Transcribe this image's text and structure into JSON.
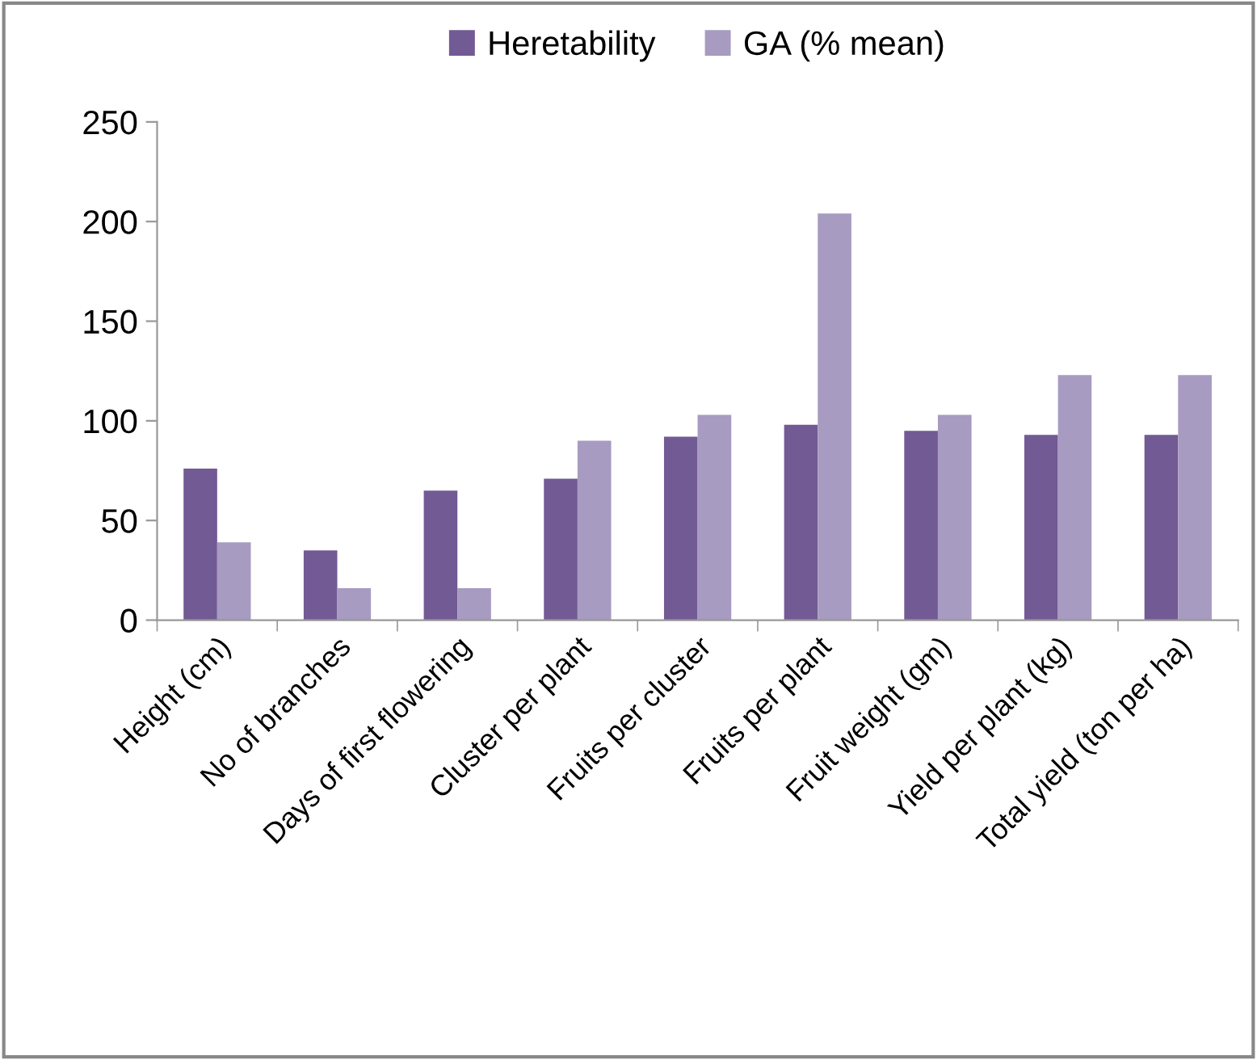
{
  "chart_data": {
    "type": "bar",
    "categories": [
      "Height (cm)",
      "No of branches",
      "Days of first flowering",
      "Cluster per plant",
      "Fruits per cluster",
      "Fruits per plant",
      "Fruit weight (gm)",
      "Yield per plant (kg)",
      "Total yield (ton per ha)"
    ],
    "series": [
      {
        "name": "Heretability",
        "color": "#725a94",
        "values": [
          76,
          35,
          65,
          71,
          92,
          98,
          95,
          93,
          93
        ]
      },
      {
        "name": "GA (% mean)",
        "color": "#a79bc1",
        "values": [
          39,
          16,
          16,
          90,
          103,
          204,
          103,
          123,
          123
        ]
      }
    ],
    "ylim": [
      0,
      250
    ],
    "yticks": [
      0,
      50,
      100,
      150,
      200,
      250
    ],
    "grid": false,
    "legend": "top"
  }
}
